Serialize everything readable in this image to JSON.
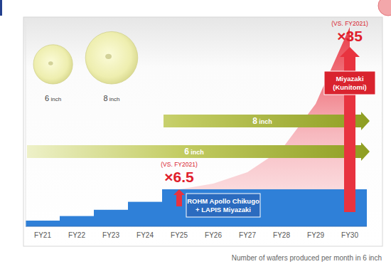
{
  "chart_data": {
    "type": "bar",
    "stacked": true,
    "tick_labels": "x",
    "categories": [
      "FY21",
      "FY22",
      "FY23",
      "FY24",
      "FY25",
      "FY26",
      "FY27",
      "FY28",
      "FY29",
      "FY30"
    ],
    "ylim": [
      0,
      36
    ],
    "series": [
      {
        "name": "ROHM Apollo Chikugo\n+ LAPIS Miyazaki",
        "type": "bar",
        "color": "#2f80d8",
        "values": [
          1,
          1.8,
          2.9,
          4.3,
          6.5,
          6.5,
          6.5,
          6.5,
          6.5,
          6.5
        ]
      },
      {
        "name": "Miyazaki\n(Kunitomi)",
        "type": "area",
        "color": "#e8333f",
        "values": [
          null,
          null,
          null,
          null,
          0,
          1,
          3,
          7,
          15,
          28.5
        ]
      }
    ],
    "annotations": [
      {
        "category": "FY25",
        "value": 6.5,
        "label": "×6.5",
        "sublabel": "(VS. FY2021)"
      },
      {
        "category": "FY30",
        "value": 35,
        "label": "×35",
        "sublabel": "(VS. FY2021)"
      }
    ],
    "ranges": [
      {
        "label": "8 inch",
        "from": "FY25"
      },
      {
        "label": "6 inch",
        "from": "FY21"
      }
    ],
    "wafers": [
      {
        "label": "6 inch",
        "size": 6
      },
      {
        "label": "8 inch",
        "size": 8
      }
    ],
    "caption": "Number of wafers produced per month in 6 inch"
  }
}
